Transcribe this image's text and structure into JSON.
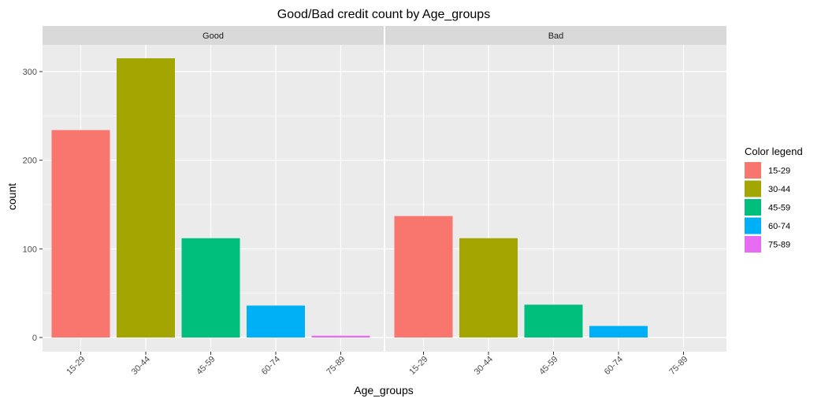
{
  "chart_data": {
    "type": "bar",
    "title": "Good/Bad credit count by Age_groups",
    "xlabel": "Age_groups",
    "ylabel": "count",
    "ylim": [
      0,
      340
    ],
    "yticks": [
      0,
      100,
      200,
      300
    ],
    "grid": true,
    "legend_position": "right",
    "categories": [
      "15-29",
      "30-44",
      "45-59",
      "60-74",
      "75-89"
    ],
    "colors": [
      "#F8766D",
      "#A3A500",
      "#00BF7D",
      "#00B0F6",
      "#E76BF3"
    ],
    "legend": {
      "title": "Color legend",
      "labels": [
        "15-29",
        "30-44",
        "45-59",
        "60-74",
        "75-89"
      ]
    },
    "panels": [
      {
        "label": "Good",
        "values": [
          234,
          315,
          112,
          36,
          2
        ]
      },
      {
        "label": "Bad",
        "values": [
          137,
          112,
          37,
          13,
          0
        ]
      }
    ]
  }
}
